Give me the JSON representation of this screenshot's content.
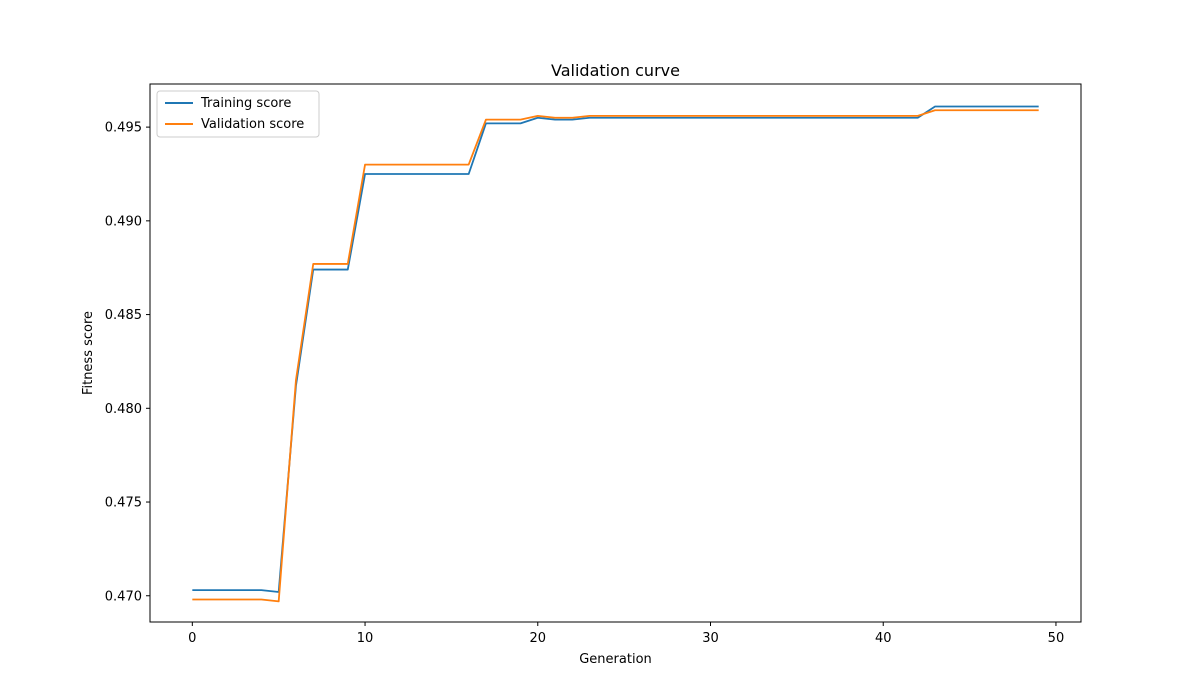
{
  "chart_data": {
    "type": "line",
    "title": "Validation curve",
    "xlabel": "Generation",
    "ylabel": "Fitness score",
    "xlim": [
      -2.45,
      51.45
    ],
    "ylim": [
      0.4686,
      0.4973
    ],
    "xticks": [
      0,
      10,
      20,
      30,
      40,
      50
    ],
    "yticks": [
      0.47,
      0.475,
      0.48,
      0.485,
      0.49,
      0.495
    ],
    "ytick_labels": [
      "0.470",
      "0.475",
      "0.480",
      "0.485",
      "0.490",
      "0.495"
    ],
    "grid": false,
    "legend_position": "top-left",
    "x": [
      0,
      1,
      2,
      3,
      4,
      5,
      6,
      7,
      8,
      9,
      10,
      11,
      12,
      13,
      14,
      15,
      16,
      17,
      18,
      19,
      20,
      21,
      22,
      23,
      24,
      25,
      26,
      27,
      28,
      29,
      30,
      31,
      32,
      33,
      34,
      35,
      36,
      37,
      38,
      39,
      40,
      41,
      42,
      43,
      44,
      45,
      46,
      47,
      48,
      49
    ],
    "series": [
      {
        "name": "Training score",
        "color": "#1f77b4",
        "values": [
          0.4703,
          0.4703,
          0.4703,
          0.4703,
          0.4703,
          0.4702,
          0.4812,
          0.4874,
          0.4874,
          0.4874,
          0.4925,
          0.4925,
          0.4925,
          0.4925,
          0.4925,
          0.4925,
          0.4925,
          0.4952,
          0.4952,
          0.4952,
          0.4955,
          0.4954,
          0.4954,
          0.4955,
          0.4955,
          0.4955,
          0.4955,
          0.4955,
          0.4955,
          0.4955,
          0.4955,
          0.4955,
          0.4955,
          0.4955,
          0.4955,
          0.4955,
          0.4955,
          0.4955,
          0.4955,
          0.4955,
          0.4955,
          0.4955,
          0.4955,
          0.4961,
          0.4961,
          0.4961,
          0.4961,
          0.4961,
          0.4961,
          0.4961
        ]
      },
      {
        "name": "Validation score",
        "color": "#ff7f0e",
        "values": [
          0.4698,
          0.4698,
          0.4698,
          0.4698,
          0.4698,
          0.4697,
          0.4815,
          0.4877,
          0.4877,
          0.4877,
          0.493,
          0.493,
          0.493,
          0.493,
          0.493,
          0.493,
          0.493,
          0.4954,
          0.4954,
          0.4954,
          0.4956,
          0.4955,
          0.4955,
          0.4956,
          0.4956,
          0.4956,
          0.4956,
          0.4956,
          0.4956,
          0.4956,
          0.4956,
          0.4956,
          0.4956,
          0.4956,
          0.4956,
          0.4956,
          0.4956,
          0.4956,
          0.4956,
          0.4956,
          0.4956,
          0.4956,
          0.4956,
          0.4959,
          0.4959,
          0.4959,
          0.4959,
          0.4959,
          0.4959,
          0.4959
        ]
      }
    ]
  }
}
